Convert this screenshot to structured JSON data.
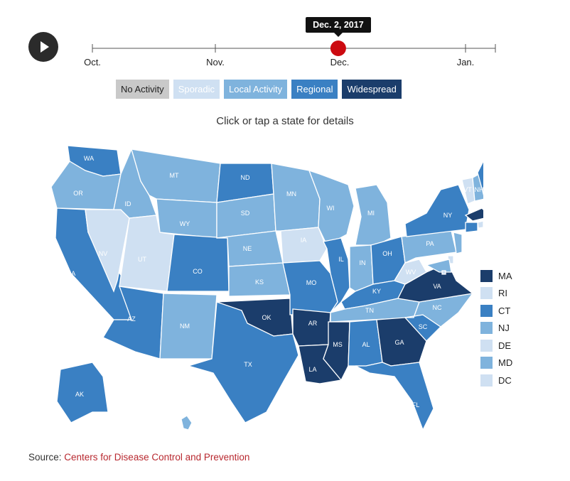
{
  "timeline": {
    "months": [
      "Oct.",
      "Nov.",
      "Dec.",
      "Jan."
    ],
    "current_date": "Dec. 2, 2017",
    "position_fraction": 0.61
  },
  "legend": [
    {
      "label": "No Activity",
      "color": "#c9c9c9",
      "text_color": "#222222"
    },
    {
      "label": "Sporadic",
      "color": "#cfe0f2",
      "text_color": "#ffffff"
    },
    {
      "label": "Local Activity",
      "color": "#7fb3dd",
      "text_color": "#ffffff"
    },
    {
      "label": "Regional",
      "color": "#3a80c3",
      "text_color": "#ffffff"
    },
    {
      "label": "Widespread",
      "color": "#1b3d6b",
      "text_color": "#ffffff"
    }
  ],
  "colors": {
    "widespread": "#1b3d6b",
    "regional": "#3a80c3",
    "local": "#7fb3dd",
    "sporadic": "#cfe0f2",
    "no_activity": "#c9c9c9",
    "accent_red": "#cc0a10"
  },
  "instruction": "Click or tap a state for details",
  "states": [
    {
      "abbr": "WA",
      "level": "regional"
    },
    {
      "abbr": "OR",
      "level": "local"
    },
    {
      "abbr": "CA",
      "level": "regional"
    },
    {
      "abbr": "NV",
      "level": "sporadic"
    },
    {
      "abbr": "ID",
      "level": "local"
    },
    {
      "abbr": "MT",
      "level": "local"
    },
    {
      "abbr": "WY",
      "level": "local"
    },
    {
      "abbr": "UT",
      "level": "sporadic"
    },
    {
      "abbr": "AZ",
      "level": "regional"
    },
    {
      "abbr": "CO",
      "level": "regional"
    },
    {
      "abbr": "NM",
      "level": "local"
    },
    {
      "abbr": "ND",
      "level": "regional"
    },
    {
      "abbr": "SD",
      "level": "local"
    },
    {
      "abbr": "NE",
      "level": "local"
    },
    {
      "abbr": "KS",
      "level": "local"
    },
    {
      "abbr": "OK",
      "level": "widespread"
    },
    {
      "abbr": "TX",
      "level": "regional"
    },
    {
      "abbr": "MN",
      "level": "local"
    },
    {
      "abbr": "IA",
      "level": "sporadic"
    },
    {
      "abbr": "MO",
      "level": "regional"
    },
    {
      "abbr": "AR",
      "level": "widespread"
    },
    {
      "abbr": "LA",
      "level": "widespread"
    },
    {
      "abbr": "WI",
      "level": "local"
    },
    {
      "abbr": "IL",
      "level": "regional"
    },
    {
      "abbr": "MI",
      "level": "local"
    },
    {
      "abbr": "IN",
      "level": "local"
    },
    {
      "abbr": "OH",
      "level": "regional"
    },
    {
      "abbr": "KY",
      "level": "regional"
    },
    {
      "abbr": "TN",
      "level": "local"
    },
    {
      "abbr": "MS",
      "level": "widespread"
    },
    {
      "abbr": "AL",
      "level": "regional"
    },
    {
      "abbr": "GA",
      "level": "widespread"
    },
    {
      "abbr": "FL",
      "level": "regional"
    },
    {
      "abbr": "SC",
      "level": "regional"
    },
    {
      "abbr": "NC",
      "level": "local"
    },
    {
      "abbr": "VA",
      "level": "widespread"
    },
    {
      "abbr": "WV",
      "level": "sporadic"
    },
    {
      "abbr": "PA",
      "level": "local"
    },
    {
      "abbr": "NY",
      "level": "regional"
    },
    {
      "abbr": "VT",
      "level": "sporadic"
    },
    {
      "abbr": "NH",
      "level": "local"
    },
    {
      "abbr": "ME",
      "level": "regional"
    },
    {
      "abbr": "AK",
      "level": "regional"
    },
    {
      "abbr": "HI",
      "level": "local"
    }
  ],
  "small_states": [
    {
      "abbr": "MA",
      "level": "widespread"
    },
    {
      "abbr": "RI",
      "level": "sporadic"
    },
    {
      "abbr": "CT",
      "level": "regional"
    },
    {
      "abbr": "NJ",
      "level": "local"
    },
    {
      "abbr": "DE",
      "level": "sporadic"
    },
    {
      "abbr": "MD",
      "level": "local"
    },
    {
      "abbr": "DC",
      "level": "sporadic"
    }
  ],
  "source": {
    "prefix": "Source: ",
    "link_text": "Centers for Disease Control and Prevention"
  }
}
